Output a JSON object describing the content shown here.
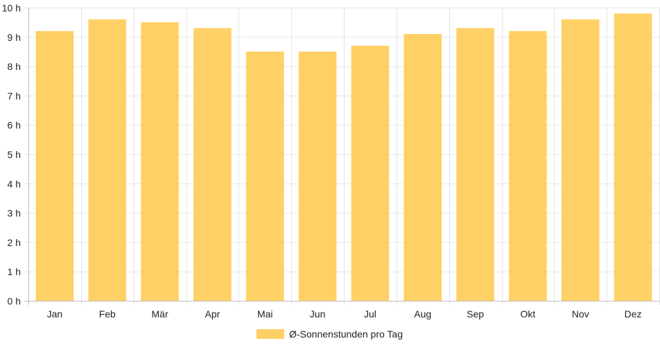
{
  "chart_data": {
    "type": "bar",
    "categories": [
      "Jan",
      "Feb",
      "Mär",
      "Apr",
      "Mai",
      "Jun",
      "Jul",
      "Aug",
      "Sep",
      "Okt",
      "Nov",
      "Dez"
    ],
    "series": [
      {
        "name": "Ø-Sonnenstunden pro Tag",
        "values": [
          9.2,
          9.6,
          9.5,
          9.3,
          8.5,
          8.5,
          8.7,
          9.1,
          9.3,
          9.2,
          9.6,
          9.8
        ],
        "color": "#fed065"
      }
    ],
    "y_ticks": [
      "0 h",
      "1 h",
      "2 h",
      "3 h",
      "4 h",
      "5 h",
      "6 h",
      "7 h",
      "8 h",
      "9 h",
      "10 h"
    ],
    "ylim": [
      0,
      10
    ],
    "y_unit": "h",
    "grid": true,
    "legend_position": "bottom",
    "grid_color": "#e5e5e5",
    "axis_color": "#bdbdbd"
  }
}
